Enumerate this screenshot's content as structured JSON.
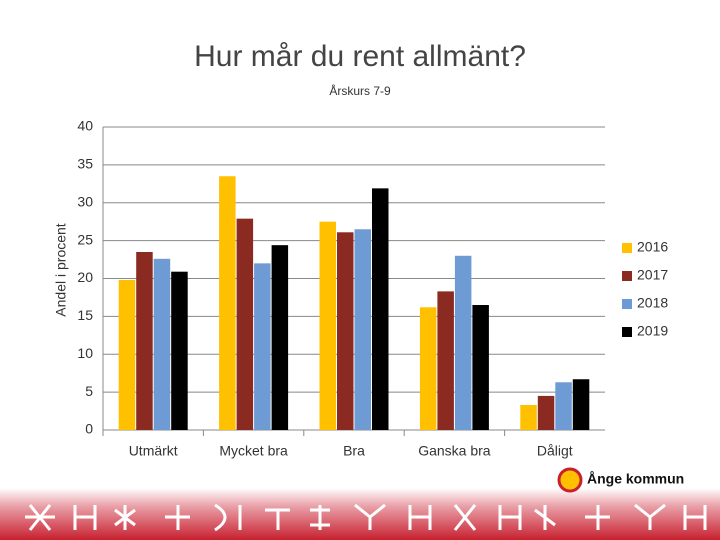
{
  "chart_data": {
    "type": "bar",
    "title": "Hur mår du rent allmänt?",
    "subtitle": "Årskurs 7-9",
    "y_label": "Andel i procent",
    "categories": [
      "Utmärkt",
      "Mycket bra",
      "Bra",
      "Ganska bra",
      "Dåligt"
    ],
    "series": [
      {
        "name": "2016",
        "color": "#ffc000",
        "values": [
          19.8,
          33.5,
          27.5,
          16.2,
          3.3
        ]
      },
      {
        "name": "2017",
        "color": "#8b2a20",
        "values": [
          23.5,
          27.9,
          26.1,
          18.3,
          4.5
        ]
      },
      {
        "name": "2018",
        "color": "#6e9bd4",
        "values": [
          22.6,
          22.0,
          26.5,
          23.0,
          6.3
        ]
      },
      {
        "name": "2019",
        "color": "#000000",
        "values": [
          20.9,
          24.4,
          31.9,
          16.5,
          6.7
        ]
      }
    ],
    "ylim": [
      0,
      40
    ],
    "yticks": [
      0,
      5,
      10,
      15,
      20,
      25,
      30,
      35,
      40
    ],
    "grid": true,
    "legend": "right"
  },
  "footer": {
    "logo": "Ånge kommun"
  }
}
